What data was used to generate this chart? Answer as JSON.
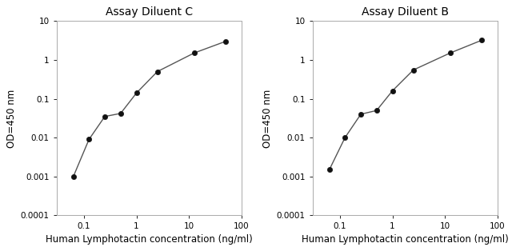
{
  "title_C": "Assay Diluent C",
  "title_B": "Assay Diluent B",
  "xlabel": "Human Lymphotactin concentration (ng/ml)",
  "ylabel": "OD=450 nm",
  "xlim": [
    0.03,
    100
  ],
  "ylim": [
    0.0001,
    10
  ],
  "x_C": [
    0.063,
    0.125,
    0.25,
    0.5,
    1.0,
    2.5,
    12.5,
    50.0
  ],
  "y_C": [
    0.001,
    0.009,
    0.035,
    0.042,
    0.14,
    0.5,
    1.5,
    3.0
  ],
  "x_B": [
    0.063,
    0.125,
    0.25,
    0.5,
    1.0,
    2.5,
    12.5,
    50.0
  ],
  "y_B": [
    0.0015,
    0.01,
    0.04,
    0.05,
    0.16,
    0.55,
    1.5,
    3.2
  ],
  "line_color": "#555555",
  "marker_color": "#111111",
  "bg_color": "#ffffff",
  "title_fontsize": 10,
  "label_fontsize": 8.5,
  "tick_fontsize": 7.5,
  "yticks": [
    0.0001,
    0.001,
    0.01,
    0.1,
    1,
    10
  ],
  "ytick_labels": [
    "0.0001",
    "0.001",
    "0.01",
    "0.1",
    "1",
    "10"
  ],
  "xticks": [
    0.1,
    1,
    10,
    100
  ],
  "xtick_labels": [
    "0.1",
    "1",
    "10",
    "100"
  ]
}
